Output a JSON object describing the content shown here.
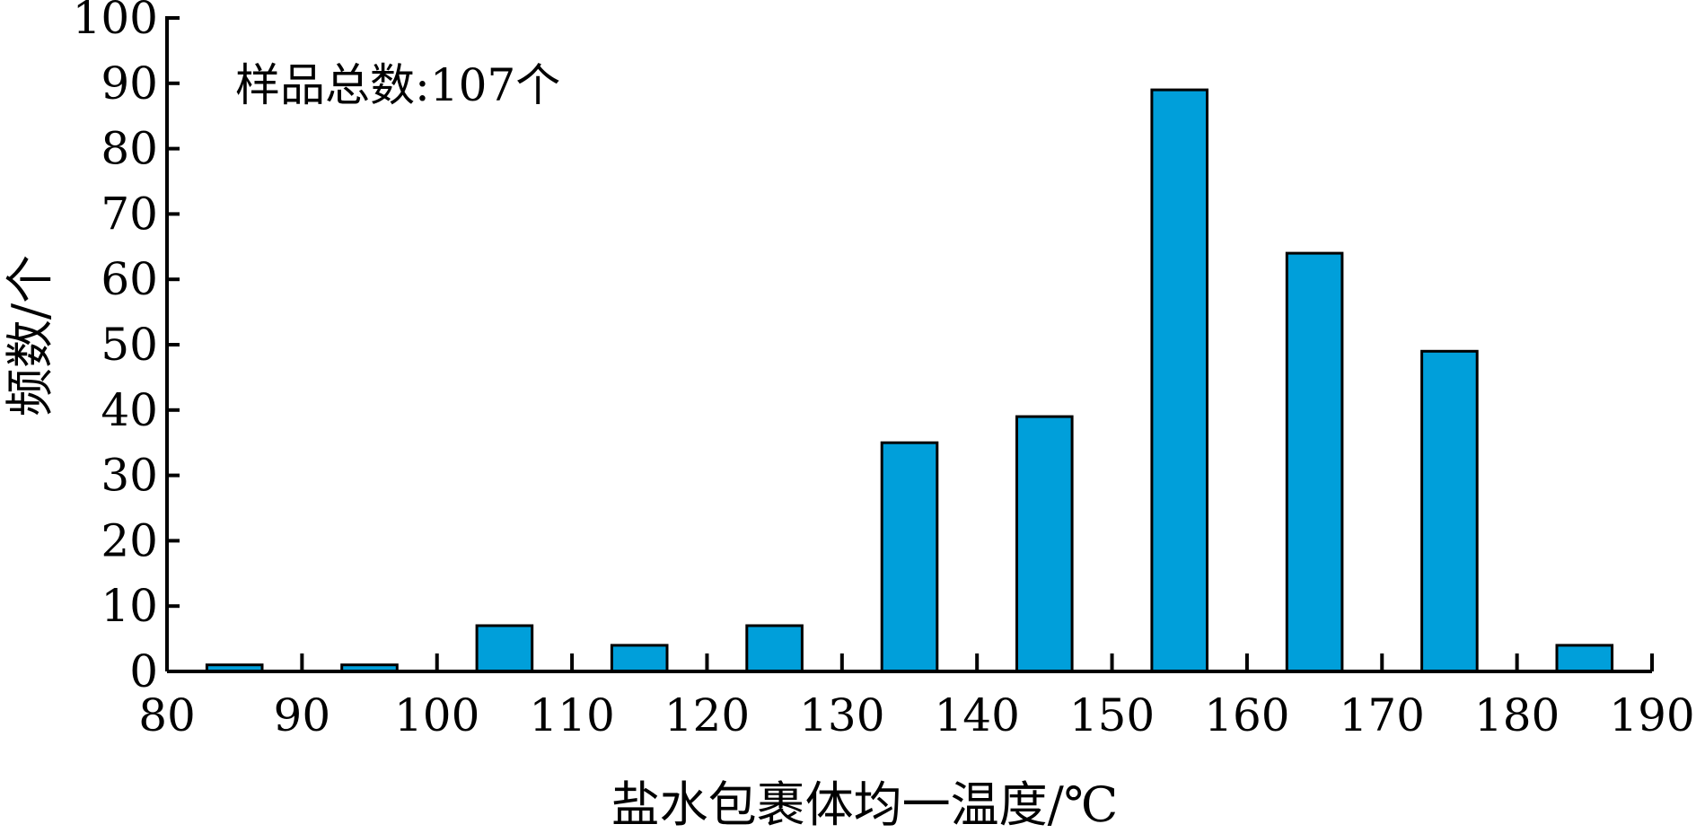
{
  "chart_data": {
    "type": "bar",
    "title": "",
    "annotation": "样品总数:107个",
    "xlabel": "盐水包裹体均一温度/℃",
    "ylabel": "频数/个",
    "xlim": [
      80,
      190
    ],
    "ylim": [
      0,
      100
    ],
    "x_ticks": [
      80,
      90,
      100,
      110,
      120,
      130,
      140,
      150,
      160,
      170,
      180,
      190
    ],
    "y_ticks": [
      0,
      10,
      20,
      30,
      40,
      50,
      60,
      70,
      80,
      90,
      100
    ],
    "bin_width": 10,
    "bars": [
      {
        "x_start": 80,
        "x_end": 90,
        "value": 1
      },
      {
        "x_start": 90,
        "x_end": 100,
        "value": 1
      },
      {
        "x_start": 100,
        "x_end": 110,
        "value": 7
      },
      {
        "x_start": 110,
        "x_end": 120,
        "value": 4
      },
      {
        "x_start": 120,
        "x_end": 130,
        "value": 7
      },
      {
        "x_start": 130,
        "x_end": 140,
        "value": 35
      },
      {
        "x_start": 140,
        "x_end": 150,
        "value": 39
      },
      {
        "x_start": 150,
        "x_end": 160,
        "value": 89
      },
      {
        "x_start": 160,
        "x_end": 170,
        "value": 64
      },
      {
        "x_start": 170,
        "x_end": 180,
        "value": 49
      },
      {
        "x_start": 180,
        "x_end": 190,
        "value": 4
      }
    ],
    "bar_color": "#009fda",
    "grid": false,
    "legend": "none"
  }
}
